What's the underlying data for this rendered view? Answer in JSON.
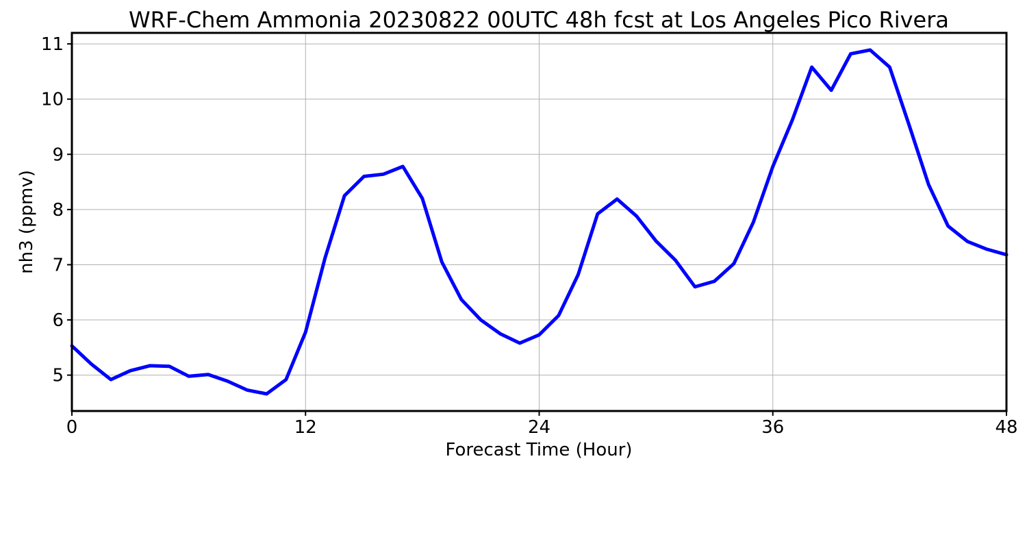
{
  "chart_data": {
    "type": "line",
    "title": "WRF-Chem Ammonia  20230822 00UTC 48h fcst at Los Angeles Pico Rivera",
    "xlabel": "Forecast Time (Hour)",
    "ylabel": "nh3  (ppmv)",
    "xlim": [
      0,
      48
    ],
    "ylim": [
      4.35,
      11.2
    ],
    "xticks": [
      0,
      12,
      24,
      36,
      48
    ],
    "yticks": [
      5,
      6,
      7,
      8,
      9,
      10,
      11
    ],
    "grid": true,
    "series": [
      {
        "color": "#0000ff",
        "x": [
          0,
          1,
          2,
          3,
          4,
          5,
          6,
          7,
          8,
          9,
          10,
          11,
          12,
          13,
          14,
          15,
          16,
          17,
          18,
          19,
          20,
          21,
          22,
          23,
          24,
          25,
          26,
          27,
          28,
          29,
          30,
          31,
          32,
          33,
          34,
          35,
          36,
          37,
          38,
          39,
          40,
          41,
          42,
          43,
          44,
          45,
          46,
          47,
          48
        ],
        "values": [
          5.53,
          5.2,
          4.92,
          5.08,
          5.17,
          5.16,
          4.98,
          5.01,
          4.89,
          4.73,
          4.66,
          4.92,
          5.78,
          7.12,
          8.25,
          8.6,
          8.64,
          8.78,
          8.2,
          7.05,
          6.37,
          6.0,
          5.75,
          5.58,
          5.73,
          6.08,
          6.82,
          7.92,
          8.19,
          7.88,
          7.43,
          7.08,
          6.6,
          6.7,
          7.02,
          7.77,
          8.78,
          9.62,
          10.58,
          10.16,
          10.82,
          10.89,
          10.58,
          9.53,
          8.45,
          7.7,
          7.42,
          7.28,
          7.18
        ]
      }
    ]
  }
}
